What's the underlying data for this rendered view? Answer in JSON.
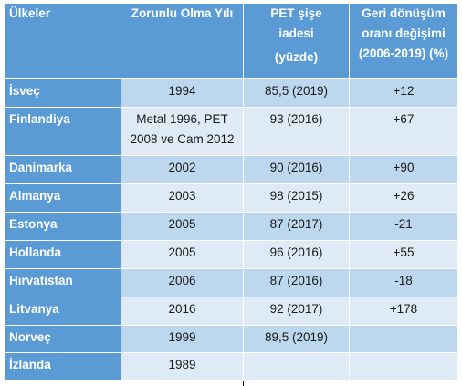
{
  "table": {
    "headers": {
      "country": "Ülkeler",
      "year": "Zorunlu Olma Yılı",
      "pet_line1": "PET şişe",
      "pet_line2": "iadesi",
      "pet_line3": "(yüzde)",
      "change_line1": "Geri dönüşüm",
      "change_line2": "oranı değişimi",
      "change_line3": "(2006-2019) (%)"
    },
    "rows": [
      {
        "country": "İsveç",
        "year_line1": "1994",
        "year_line2": "",
        "pet": "85,5 (2019)",
        "change": "+12"
      },
      {
        "country": "Finlandiya",
        "year_line1": "Metal 1996, PET",
        "year_line2": "2008 ve Cam 2012",
        "pet": "93 (2016)",
        "change": "+67"
      },
      {
        "country": "Danimarka",
        "year_line1": "2002",
        "year_line2": "",
        "pet": "90 (2016)",
        "change": "+90"
      },
      {
        "country": "Almanya",
        "year_line1": "2003",
        "year_line2": "",
        "pet": "98 (2015)",
        "change": "+26"
      },
      {
        "country": "Estonya",
        "year_line1": "2005",
        "year_line2": "",
        "pet": "87 (2017)",
        "change": "-21"
      },
      {
        "country": "Hollanda",
        "year_line1": "2005",
        "year_line2": "",
        "pet": "96 (2016)",
        "change": "+55"
      },
      {
        "country": "Hırvatistan",
        "year_line1": "2006",
        "year_line2": "",
        "pet": "87 (2016)",
        "change": "-18"
      },
      {
        "country": "Litvanya",
        "year_line1": "2016",
        "year_line2": "",
        "pet": "92 (2017)",
        "change": "+178"
      },
      {
        "country": "Norveç",
        "year_line1": "1999",
        "year_line2": "",
        "pet": "89,5 (2019)",
        "change": ""
      },
      {
        "country": "İzlanda",
        "year_line1": "1989",
        "year_line2": "",
        "pet": "",
        "change": ""
      }
    ]
  }
}
